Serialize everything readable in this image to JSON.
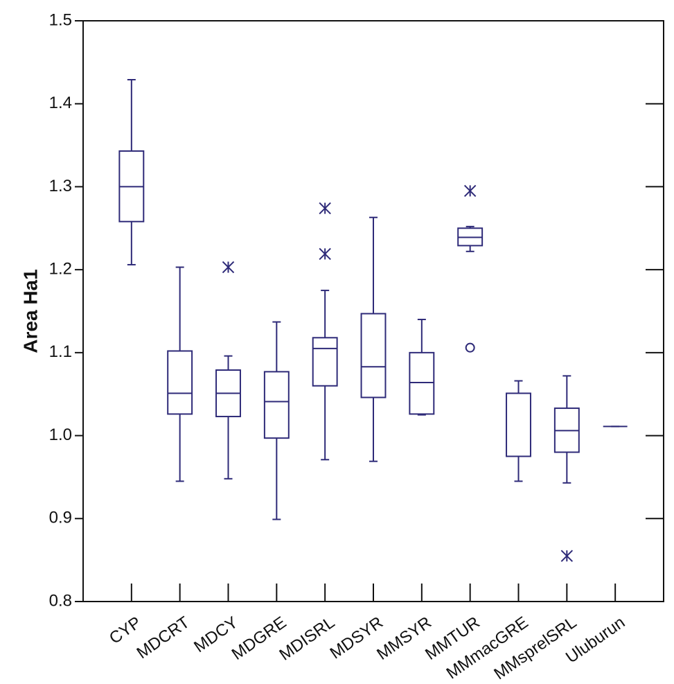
{
  "chart_data": {
    "type": "box",
    "y_label": "Area Ha1",
    "color": "#2e2a78",
    "categories": [
      "CYP",
      "MDCRT",
      "MDCY",
      "MDGRE",
      "MDISRL",
      "MDSYR",
      "MMSYR",
      "MMTUR",
      "MMmacGRE",
      "MMsprelSRL",
      "Uluburun"
    ],
    "boxes": [
      {
        "min": 1.206,
        "q1": 1.258,
        "median": 1.3,
        "q3": 1.343,
        "max": 1.429,
        "outliers": [],
        "far_outliers": []
      },
      {
        "min": 0.945,
        "q1": 1.026,
        "median": 1.051,
        "q3": 1.102,
        "max": 1.203,
        "outliers": [],
        "far_outliers": []
      },
      {
        "min": 0.948,
        "q1": 1.023,
        "median": 1.051,
        "q3": 1.079,
        "max": 1.096,
        "outliers": [
          1.203
        ],
        "far_outliers": []
      },
      {
        "min": 0.899,
        "q1": 0.997,
        "median": 1.041,
        "q3": 1.077,
        "max": 1.137,
        "outliers": [],
        "far_outliers": []
      },
      {
        "min": 0.971,
        "q1": 1.06,
        "median": 1.105,
        "q3": 1.118,
        "max": 1.175,
        "outliers": [
          1.219,
          1.274
        ],
        "far_outliers": []
      },
      {
        "min": 0.969,
        "q1": 1.046,
        "median": 1.083,
        "q3": 1.147,
        "max": 1.263,
        "outliers": [],
        "far_outliers": []
      },
      {
        "min": 1.025,
        "q1": 1.026,
        "median": 1.064,
        "q3": 1.1,
        "max": 1.14,
        "outliers": [],
        "far_outliers": []
      },
      {
        "min": 1.222,
        "q1": 1.229,
        "median": 1.239,
        "q3": 1.25,
        "max": 1.252,
        "outliers": [
          1.295
        ],
        "far_outliers": [
          1.106
        ]
      },
      {
        "min": 0.945,
        "q1": 0.975,
        "median": 1.051,
        "q3": 1.051,
        "max": 1.066,
        "outliers": [],
        "far_outliers": []
      },
      {
        "min": 0.943,
        "q1": 0.98,
        "median": 1.006,
        "q3": 1.033,
        "max": 1.072,
        "outliers": [
          0.855
        ],
        "far_outliers": []
      },
      {
        "min": 1.011,
        "q1": 1.011,
        "median": 1.011,
        "q3": 1.011,
        "max": 1.011,
        "outliers": [],
        "far_outliers": []
      }
    ],
    "ylim": [
      0.8,
      1.5
    ],
    "yticks": [
      0.8,
      0.9,
      {
        "value": 1.0,
        "label": "1.0"
      },
      1.1,
      1.2,
      1.3,
      1.4,
      1.5
    ]
  }
}
